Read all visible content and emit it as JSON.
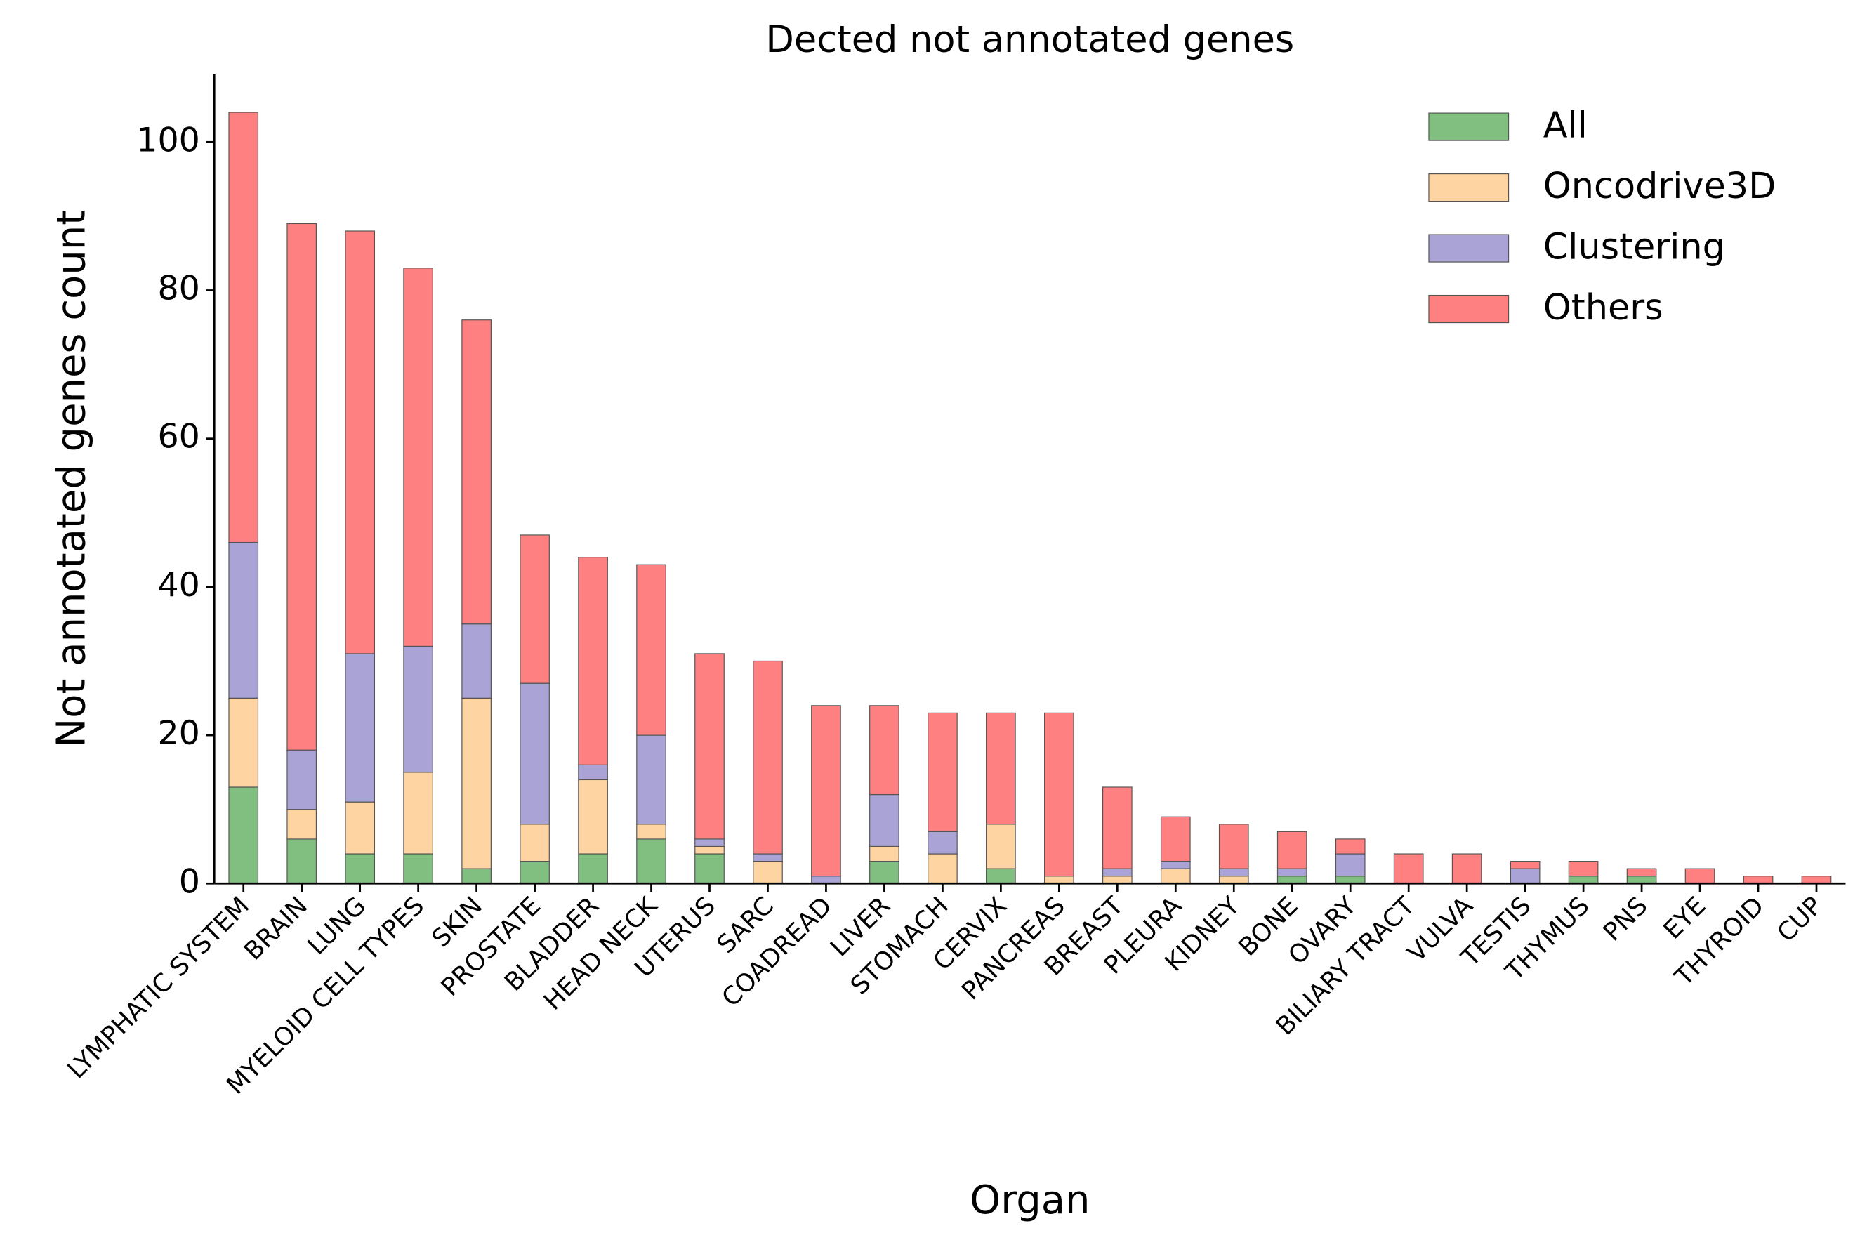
{
  "chart_data": {
    "type": "stacked_bar",
    "title": "Dected not annotated genes",
    "xlabel": "Organ",
    "ylabel": "Not annotated genes count",
    "categories": [
      "LYMPHATIC SYSTEM",
      "BRAIN",
      "LUNG",
      "MYELOID CELL TYPES",
      "SKIN",
      "PROSTATE",
      "BLADDER",
      "HEAD NECK",
      "UTERUS",
      "SARC",
      "COADREAD",
      "LIVER",
      "STOMACH",
      "CERVIX",
      "PANCREAS",
      "BREAST",
      "PLEURA",
      "KIDNEY",
      "BONE",
      "OVARY",
      "BILIARY TRACT",
      "VULVA",
      "TESTIS",
      "THYMUS",
      "PNS",
      "EYE",
      "THYROID",
      "CUP"
    ],
    "series": [
      {
        "name": "All",
        "color": "#80bf80",
        "values": [
          13,
          6,
          4,
          4,
          2,
          3,
          4,
          6,
          4,
          0,
          0,
          3,
          0,
          2,
          0,
          0,
          0,
          0,
          1,
          1,
          0,
          0,
          0,
          1,
          1,
          0,
          0,
          0
        ]
      },
      {
        "name": "Oncodrive3D",
        "color": "#fed4a2",
        "values": [
          12,
          4,
          7,
          11,
          23,
          5,
          10,
          2,
          1,
          3,
          0,
          2,
          4,
          6,
          1,
          1,
          2,
          1,
          0,
          0,
          0,
          0,
          0,
          0,
          0,
          0,
          0,
          0
        ]
      },
      {
        "name": "Clustering",
        "color": "#a9a3d6",
        "values": [
          21,
          8,
          20,
          17,
          10,
          19,
          2,
          12,
          1,
          1,
          1,
          7,
          3,
          0,
          0,
          1,
          1,
          1,
          1,
          3,
          0,
          0,
          2,
          0,
          0,
          0,
          0,
          0
        ]
      },
      {
        "name": "Others",
        "color": "#ff8080",
        "values": [
          58,
          71,
          57,
          51,
          41,
          20,
          28,
          23,
          25,
          26,
          23,
          12,
          16,
          15,
          22,
          11,
          6,
          6,
          5,
          2,
          4,
          4,
          1,
          2,
          1,
          2,
          1,
          1
        ]
      }
    ],
    "ylim": [
      0,
      109.2
    ],
    "yticks": [
      0,
      20,
      40,
      60,
      80,
      100
    ],
    "legend": "upper right",
    "grid": false
  }
}
